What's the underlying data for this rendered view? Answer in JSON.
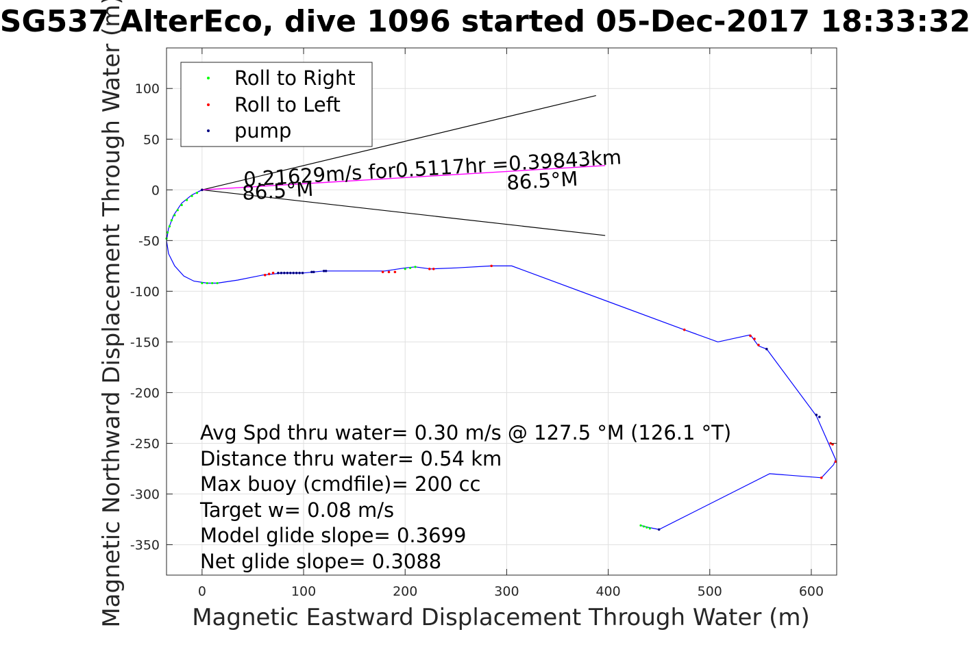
{
  "chart_data": {
    "type": "scatter",
    "title": "SG537 AlterEco, dive 1096 started 05-Dec-2017 18:33:32",
    "xlabel": "Magnetic Eastward Displacement Through Water (m)",
    "ylabel": "Magnetic Northward Displacement Through Water (m)",
    "xlim": [
      -35,
      625
    ],
    "ylim": [
      -380,
      140
    ],
    "xticks": [
      0,
      100,
      200,
      300,
      400,
      500,
      600
    ],
    "yticks": [
      100,
      50,
      0,
      -50,
      -100,
      -150,
      -200,
      -250,
      -300,
      -350
    ],
    "grid": true,
    "legend_position": "top-left",
    "legend": [
      "Roll to Right",
      "Roll to Left",
      "pump"
    ],
    "colors": {
      "track": "#0000ff",
      "roll_right": "#00ff00",
      "roll_left": "#ff0000",
      "pump": "#000080",
      "cone": "#000000",
      "mean_line": "#ff00ff"
    },
    "track": {
      "name": "track",
      "x": [
        0,
        -10,
        -20,
        -28,
        -33,
        -35,
        -33,
        -27,
        -18,
        -8,
        5,
        15,
        35,
        60,
        80,
        100,
        120,
        150,
        180,
        200,
        210,
        225,
        250,
        285,
        305,
        475,
        508,
        540,
        548,
        556,
        605,
        624,
        622,
        610,
        559,
        450,
        440,
        432
      ],
      "y": [
        0,
        -5,
        -13,
        -25,
        -38,
        -50,
        -63,
        -75,
        -85,
        -90,
        -92,
        -92,
        -89,
        -84,
        -82,
        -82,
        -80,
        -80,
        -80,
        -77,
        -76,
        -78,
        -77,
        -75,
        -75,
        -138,
        -150,
        -143,
        -154,
        -157,
        -223,
        -266,
        -271,
        -284,
        -280,
        -335,
        -333,
        -331
      ]
    },
    "roll_right": {
      "name": "Roll to Right",
      "x": [
        -35,
        -34,
        -32,
        -30,
        -27,
        -24,
        -20,
        -15,
        -10,
        -5,
        0,
        5,
        10,
        15,
        200,
        205,
        210,
        432,
        435,
        438,
        441
      ],
      "y": [
        -48,
        -42,
        -36,
        -30,
        -25,
        -20,
        -15,
        -10,
        -6,
        -3,
        -92,
        -92,
        -92,
        -92,
        -78,
        -77,
        -76,
        -331,
        -332,
        -333,
        -334
      ]
    },
    "roll_left": {
      "name": "Roll to Left",
      "x": [
        0,
        62,
        66,
        70,
        178,
        184,
        190,
        224,
        228,
        285,
        475,
        540,
        544,
        548,
        619,
        621,
        624,
        610
      ],
      "y": [
        0,
        -84,
        -83,
        -82,
        -81,
        -81,
        -81,
        -78,
        -78,
        -75,
        -138,
        -144,
        -147,
        -153,
        -250,
        -251,
        -268,
        -284
      ],
      "marker_color": "#ff0000"
    },
    "pump": {
      "name": "pump",
      "x": [
        0,
        75,
        78,
        81,
        84,
        87,
        90,
        93,
        96,
        99,
        108,
        110,
        120,
        122,
        556,
        605,
        608,
        450
      ],
      "y": [
        0,
        -82,
        -82,
        -82,
        -82,
        -82,
        -82,
        -82,
        -82,
        -82,
        -81,
        -81,
        -80,
        -80,
        -157,
        -222,
        -224,
        -335
      ]
    },
    "cone_lines": [
      {
        "x": [
          0,
          388
        ],
        "y": [
          0,
          93
        ]
      },
      {
        "x": [
          0,
          397
        ],
        "y": [
          0,
          -45
        ]
      }
    ],
    "mean_line": {
      "x": [
        0,
        397
      ],
      "y": [
        0,
        24
      ]
    },
    "annotations": {
      "mean_text": "0.21629m/s for0.5117hr =0.39843km",
      "heading_near": "86.5°M",
      "heading_far": "86.5°M"
    },
    "stats": [
      "Avg Spd thru water=  0.30 m/s @ 127.5 °M (126.1 °T)",
      "Distance thru water=  0.54 km",
      "Max buoy (cmdfile)= 200 cc",
      "Target w= 0.08 m/s",
      "Model glide slope= 0.3699",
      "Net glide slope= 0.3088"
    ]
  }
}
